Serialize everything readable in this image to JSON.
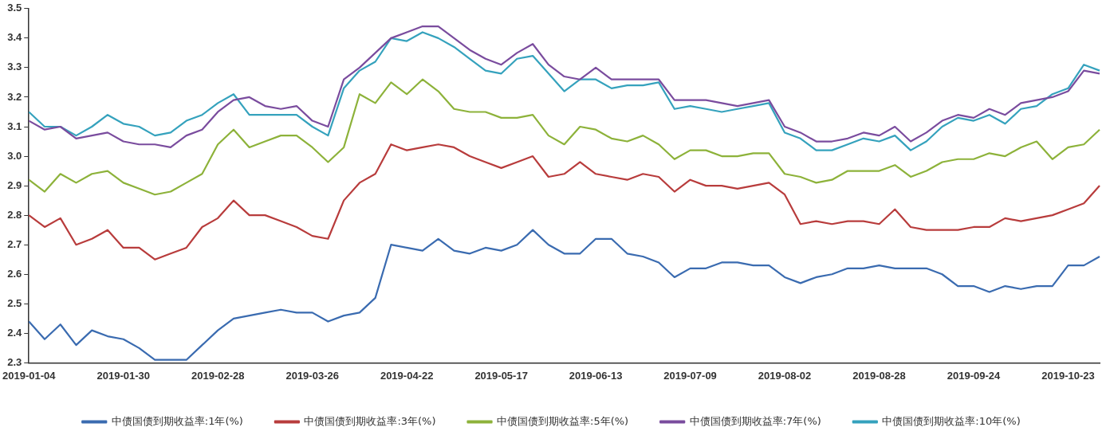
{
  "chart_data": {
    "type": "line",
    "categories": [
      "2019-01-04",
      null,
      null,
      null,
      null,
      null,
      "2019-01-30",
      null,
      null,
      null,
      null,
      null,
      "2019-02-28",
      null,
      null,
      null,
      null,
      null,
      "2019-03-26",
      null,
      null,
      null,
      null,
      null,
      "2019-04-22",
      null,
      null,
      null,
      null,
      null,
      "2019-05-17",
      null,
      null,
      null,
      null,
      null,
      "2019-06-13",
      null,
      null,
      null,
      null,
      null,
      "2019-07-09",
      null,
      null,
      null,
      null,
      null,
      "2019-08-02",
      null,
      null,
      null,
      null,
      null,
      "2019-08-28",
      null,
      null,
      null,
      null,
      null,
      "2019-09-24",
      null,
      null,
      null,
      null,
      null,
      "2019-10-23",
      null,
      null
    ],
    "series": [
      {
        "name": "中债国债到期收益率:1年(%)",
        "color": "#3a6bb0",
        "values": [
          2.44,
          2.38,
          2.43,
          2.36,
          2.41,
          2.39,
          2.38,
          2.35,
          2.31,
          2.31,
          2.31,
          2.36,
          2.41,
          2.45,
          2.46,
          2.47,
          2.48,
          2.47,
          2.47,
          2.44,
          2.46,
          2.47,
          2.52,
          2.7,
          2.69,
          2.68,
          2.72,
          2.68,
          2.67,
          2.69,
          2.68,
          2.7,
          2.75,
          2.7,
          2.67,
          2.67,
          2.72,
          2.72,
          2.67,
          2.66,
          2.64,
          2.59,
          2.62,
          2.62,
          2.64,
          2.64,
          2.63,
          2.63,
          2.59,
          2.57,
          2.59,
          2.6,
          2.62,
          2.62,
          2.63,
          2.62,
          2.62,
          2.62,
          2.6,
          2.56,
          2.56,
          2.54,
          2.56,
          2.55,
          2.56,
          2.56,
          2.63,
          2.63,
          2.66
        ]
      },
      {
        "name": "中债国债到期收益率:3年(%)",
        "color": "#b83c3c",
        "values": [
          2.8,
          2.76,
          2.79,
          2.7,
          2.72,
          2.75,
          2.69,
          2.69,
          2.65,
          2.67,
          2.69,
          2.76,
          2.79,
          2.85,
          2.8,
          2.8,
          2.78,
          2.76,
          2.73,
          2.72,
          2.85,
          2.91,
          2.94,
          3.04,
          3.02,
          3.03,
          3.04,
          3.03,
          3.0,
          2.98,
          2.96,
          2.98,
          3.0,
          2.93,
          2.94,
          2.98,
          2.94,
          2.93,
          2.92,
          2.94,
          2.93,
          2.88,
          2.92,
          2.9,
          2.9,
          2.89,
          2.9,
          2.91,
          2.87,
          2.77,
          2.78,
          2.77,
          2.78,
          2.78,
          2.77,
          2.82,
          2.76,
          2.75,
          2.75,
          2.75,
          2.76,
          2.76,
          2.79,
          2.78,
          2.79,
          2.8,
          2.82,
          2.84,
          2.9
        ]
      },
      {
        "name": "中债国债到期收益率:5年(%)",
        "color": "#8db23a",
        "values": [
          2.92,
          2.88,
          2.94,
          2.91,
          2.94,
          2.95,
          2.91,
          2.89,
          2.87,
          2.88,
          2.91,
          2.94,
          3.04,
          3.09,
          3.03,
          3.05,
          3.07,
          3.07,
          3.03,
          2.98,
          3.03,
          3.21,
          3.18,
          3.25,
          3.21,
          3.26,
          3.22,
          3.16,
          3.15,
          3.15,
          3.13,
          3.13,
          3.14,
          3.07,
          3.04,
          3.1,
          3.09,
          3.06,
          3.05,
          3.07,
          3.04,
          2.99,
          3.02,
          3.02,
          3.0,
          3.0,
          3.01,
          3.01,
          2.94,
          2.93,
          2.91,
          2.92,
          2.95,
          2.95,
          2.95,
          2.97,
          2.93,
          2.95,
          2.98,
          2.99,
          2.99,
          3.01,
          3.0,
          3.03,
          3.05,
          2.99,
          3.03,
          3.04,
          3.09
        ]
      },
      {
        "name": "中债国债到期收益率:7年(%)",
        "color": "#7a4c9e",
        "values": [
          3.12,
          3.09,
          3.1,
          3.06,
          3.07,
          3.08,
          3.05,
          3.04,
          3.04,
          3.03,
          3.07,
          3.09,
          3.15,
          3.19,
          3.2,
          3.17,
          3.16,
          3.17,
          3.12,
          3.1,
          3.26,
          3.3,
          3.35,
          3.4,
          3.42,
          3.44,
          3.44,
          3.4,
          3.36,
          3.33,
          3.31,
          3.35,
          3.38,
          3.31,
          3.27,
          3.26,
          3.3,
          3.26,
          3.26,
          3.26,
          3.26,
          3.19,
          3.19,
          3.19,
          3.18,
          3.17,
          3.18,
          3.19,
          3.1,
          3.08,
          3.05,
          3.05,
          3.06,
          3.08,
          3.07,
          3.1,
          3.05,
          3.08,
          3.12,
          3.14,
          3.13,
          3.16,
          3.14,
          3.18,
          3.19,
          3.2,
          3.22,
          3.29,
          3.28
        ]
      },
      {
        "name": "中债国债到期收益率:10年(%)",
        "color": "#35a2bd",
        "values": [
          3.15,
          3.1,
          3.1,
          3.07,
          3.1,
          3.14,
          3.11,
          3.1,
          3.07,
          3.08,
          3.12,
          3.14,
          3.18,
          3.21,
          3.14,
          3.14,
          3.14,
          3.14,
          3.1,
          3.07,
          3.23,
          3.29,
          3.32,
          3.4,
          3.39,
          3.42,
          3.4,
          3.37,
          3.33,
          3.29,
          3.28,
          3.33,
          3.34,
          3.28,
          3.22,
          3.26,
          3.26,
          3.23,
          3.24,
          3.24,
          3.25,
          3.16,
          3.17,
          3.16,
          3.15,
          3.16,
          3.17,
          3.18,
          3.08,
          3.06,
          3.02,
          3.02,
          3.04,
          3.06,
          3.05,
          3.07,
          3.02,
          3.05,
          3.1,
          3.13,
          3.12,
          3.14,
          3.11,
          3.16,
          3.17,
          3.21,
          3.23,
          3.31,
          3.29
        ]
      }
    ],
    "ylim": [
      2.3,
      3.5
    ],
    "yticks": [
      2.3,
      2.4,
      2.5,
      2.6,
      2.7,
      2.8,
      2.9,
      {
        "value": 3.0,
        "label": "3.0"
      },
      3.1,
      3.2,
      3.3,
      3.4,
      3.5
    ],
    "grid": false,
    "legend": "bottom",
    "marker": "none",
    "line_style": "solid"
  }
}
